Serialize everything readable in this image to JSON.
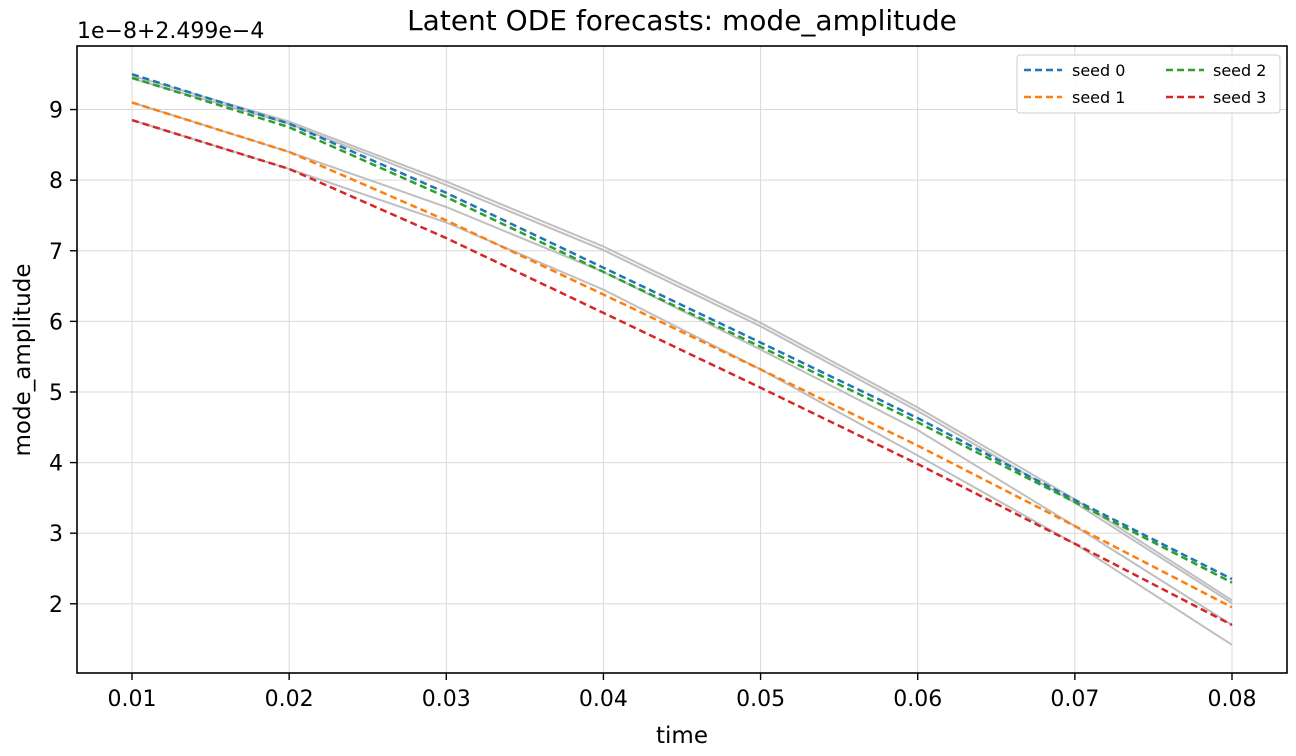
{
  "chart_data": {
    "type": "line",
    "title": "Latent ODE forecasts: mode_amplitude",
    "xlabel": "time",
    "ylabel": "mode_amplitude",
    "y_offset_label": "1e−8+2.499e−4",
    "y_offset_note": "y values are in units of 1e-8 relative to offset 2.499e-4",
    "xlim": [
      0.0065,
      0.0835
    ],
    "ylim": [
      1.02,
      9.9
    ],
    "x_ticks": [
      "0.01",
      "0.02",
      "0.03",
      "0.04",
      "0.05",
      "0.06",
      "0.07",
      "0.08"
    ],
    "x_tick_values": [
      0.01,
      0.02,
      0.03,
      0.04,
      0.05,
      0.06,
      0.07,
      0.08
    ],
    "y_ticks": [
      "2",
      "3",
      "4",
      "5",
      "6",
      "7",
      "8",
      "9"
    ],
    "y_tick_values": [
      2,
      3,
      4,
      5,
      6,
      7,
      8,
      9
    ],
    "grid": true,
    "legend_position": "top-right",
    "x": [
      0.01,
      0.02,
      0.03,
      0.04,
      0.05,
      0.06,
      0.07,
      0.08
    ],
    "series": [
      {
        "name": "seed 0",
        "color": "#1f77b4",
        "style": "dashed",
        "values": [
          9.5,
          8.8,
          7.82,
          6.76,
          5.7,
          4.63,
          3.47,
          2.35
        ]
      },
      {
        "name": "seed 1",
        "color": "#ff7f0e",
        "style": "dashed",
        "values": [
          9.1,
          8.4,
          7.43,
          6.38,
          5.32,
          4.24,
          3.1,
          1.95
        ]
      },
      {
        "name": "seed 2",
        "color": "#2ca02c",
        "style": "dashed",
        "values": [
          9.45,
          8.75,
          7.76,
          6.7,
          5.64,
          4.57,
          3.44,
          2.3
        ]
      },
      {
        "name": "seed 3",
        "color": "#d62728",
        "style": "dashed",
        "values": [
          8.85,
          8.16,
          7.18,
          6.12,
          5.06,
          3.98,
          2.85,
          1.7
        ]
      }
    ],
    "reference_lines": [
      {
        "color": "#bfbfbf",
        "values": [
          9.48,
          8.83,
          7.98,
          7.06,
          5.98,
          4.78,
          3.48,
          2.05
        ]
      },
      {
        "color": "#bfbfbf",
        "values": [
          9.44,
          8.8,
          7.93,
          7.01,
          5.93,
          4.73,
          3.43,
          2.01
        ]
      },
      {
        "color": "#bfbfbf",
        "values": [
          9.1,
          8.4,
          7.62,
          6.7,
          5.6,
          4.46,
          3.1,
          1.7
        ]
      },
      {
        "color": "#bfbfbf",
        "values": [
          8.85,
          8.16,
          7.4,
          6.45,
          5.32,
          4.1,
          2.85,
          1.42
        ]
      }
    ]
  }
}
